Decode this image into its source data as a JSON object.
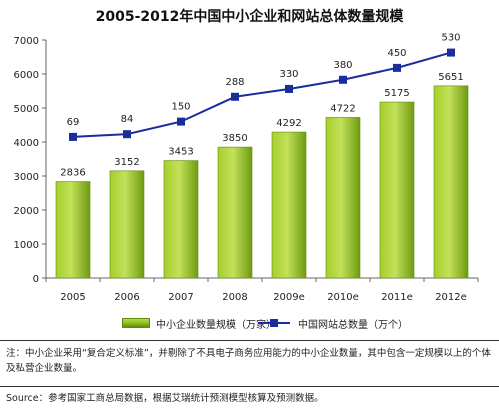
{
  "title": "2005-2012年中国中小企业和网站总体数量规模",
  "chart_data": {
    "type": "bar",
    "categories": [
      "2005",
      "2006",
      "2007",
      "2008",
      "2009e",
      "2010e",
      "2011e",
      "2012e"
    ],
    "series": [
      {
        "name": "中小企业数量规模（万家）",
        "type": "bar",
        "values": [
          2836,
          3152,
          3453,
          3850,
          4292,
          4722,
          5175,
          5651
        ],
        "color": "#8cbb1e"
      },
      {
        "name": "中国网站总数量（万个）",
        "type": "line",
        "values": [
          69,
          84,
          150,
          288,
          330,
          380,
          450,
          530
        ],
        "plotted": [
          4150,
          4230,
          4600,
          5330,
          5560,
          5830,
          6180,
          6630
        ],
        "color": "#1a2d9c"
      }
    ],
    "ylim": [
      0,
      7000
    ],
    "yticks": [
      "0",
      "1000",
      "2000",
      "3000",
      "4000",
      "5000",
      "6000",
      "7000"
    ],
    "ytick_values": [
      0,
      1000,
      2000,
      3000,
      4000,
      5000,
      6000,
      7000
    ],
    "grid": false,
    "legend": "bottom"
  },
  "legend": {
    "bar_label": "中小企业数量规模（万家）",
    "line_label": "中国网站总数量（万个）"
  },
  "note": "注：中小企业采用“复合定义标准”，并剔除了不具电子商务应用能力的中小企业数量，其中包含一定规模以上的个体及私营企业数量。",
  "source": "Source：参考国家工商总局数据，根据艾瑞统计预测模型核算及预测数据。"
}
